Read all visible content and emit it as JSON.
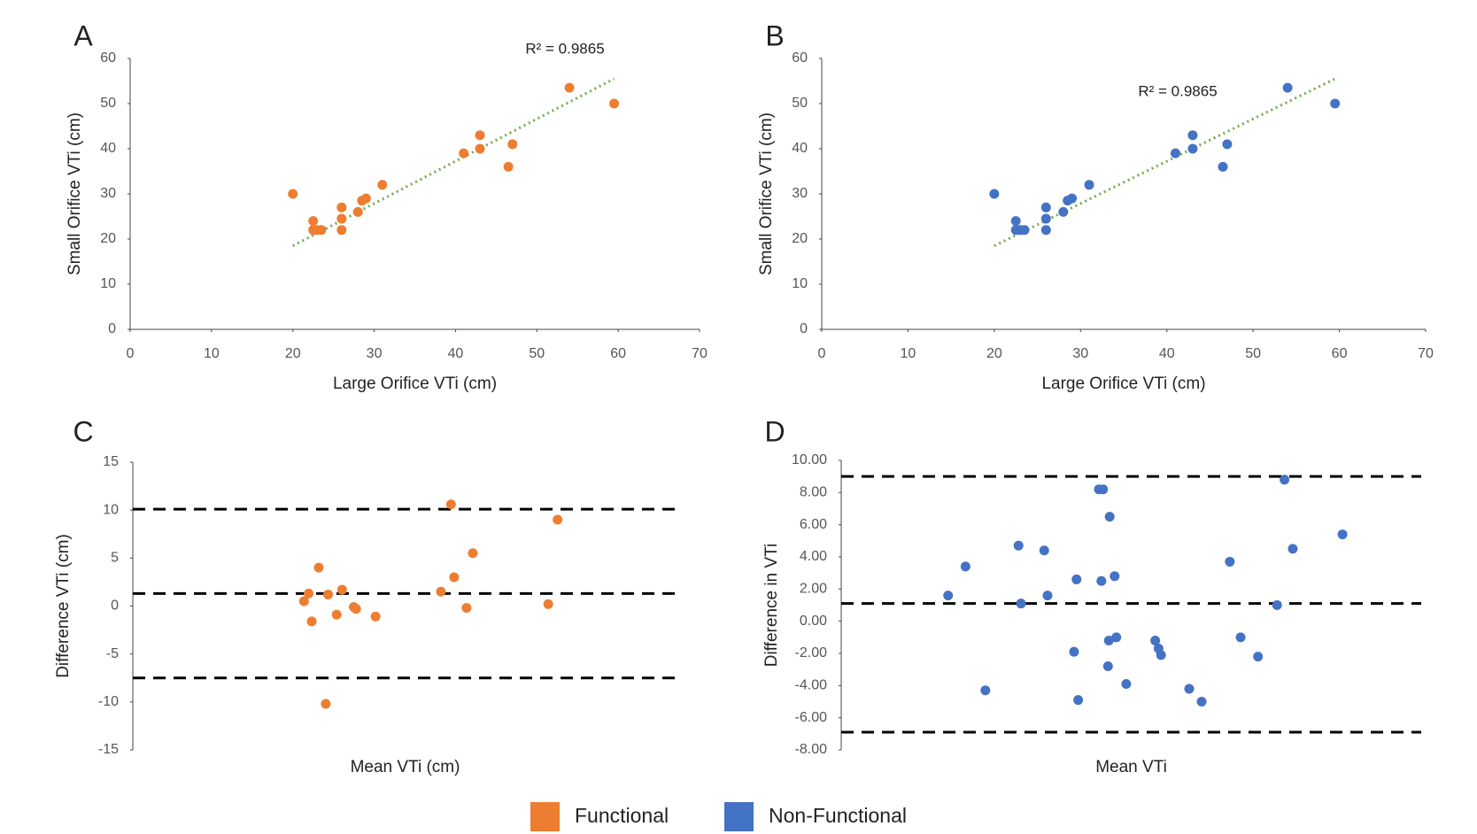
{
  "chart_data": [
    {
      "type": "scatter",
      "panel": "A",
      "xlabel": "Large Orifice VTi (cm)",
      "ylabel": "Small Orifice VTi (cm)",
      "annotation": "R² = 0.9865",
      "x": [
        20,
        22.5,
        22.5,
        23,
        23.5,
        26,
        26,
        26,
        28,
        28.5,
        29,
        31,
        41,
        43,
        43,
        46.5,
        47,
        54,
        59.5
      ],
      "series": [
        {
          "color": "#ed7d31",
          "values": [
            30,
            24,
            22,
            22,
            22,
            27,
            24.5,
            22,
            26,
            28.5,
            29,
            32,
            39,
            43,
            40,
            36,
            41,
            53.5,
            50
          ]
        }
      ],
      "trendline": {
        "x": [
          20,
          59.5
        ],
        "y": [
          18.5,
          55.5
        ],
        "color": "#70ad47"
      },
      "xlim": [
        0,
        70
      ],
      "xticks": [
        0,
        10,
        20,
        30,
        40,
        50,
        60,
        70
      ],
      "ylim": [
        0,
        60
      ],
      "yticks": [
        0,
        10,
        20,
        30,
        40,
        50,
        60
      ]
    },
    {
      "type": "scatter",
      "panel": "B",
      "xlabel": "Large Orifice VTi (cm)",
      "ylabel": "Small Orifice VTi (cm)",
      "annotation": "R² = 0.9865",
      "x": [
        20,
        22.5,
        22.5,
        23,
        23.5,
        26,
        26,
        26,
        28,
        28.5,
        29,
        31,
        41,
        43,
        43,
        46.5,
        47,
        54,
        59.5
      ],
      "series": [
        {
          "color": "#4472c4",
          "values": [
            30,
            24,
            22,
            22,
            22,
            27,
            24.5,
            22,
            26,
            28.5,
            29,
            32,
            39,
            43,
            40,
            36,
            41,
            53.5,
            50
          ]
        }
      ],
      "trendline": {
        "x": [
          20,
          59.5
        ],
        "y": [
          18.5,
          55.5
        ],
        "color": "#70ad47"
      },
      "xlim": [
        0,
        70
      ],
      "xticks": [
        0,
        10,
        20,
        30,
        40,
        50,
        60,
        70
      ],
      "ylim": [
        0,
        60
      ],
      "yticks": [
        0,
        10,
        20,
        30,
        40,
        50,
        60
      ]
    },
    {
      "type": "scatter",
      "panel": "C",
      "xlabel": "Mean VTi (cm)",
      "ylabel": "Difference  VTi (cm)",
      "x": [
        22,
        22.6,
        23,
        23.9,
        24.8,
        25.1,
        26.2,
        26.9,
        28.4,
        28.7,
        31.2,
        39.6,
        40.9,
        41.3,
        42.9,
        43.7,
        53.4,
        54.6
      ],
      "series": [
        {
          "color": "#ed7d31",
          "values": [
            0.5,
            1.3,
            -1.6,
            4,
            -10.2,
            1.2,
            -0.9,
            1.7,
            -0.1,
            -0.3,
            -1.1,
            1.5,
            10.6,
            3,
            -0.2,
            5.5,
            0.2,
            9
          ]
        }
      ],
      "hlines": [
        10.1,
        1.3,
        -7.5
      ],
      "xlim": [
        0,
        70
      ],
      "ylim": [
        -15,
        15
      ],
      "yticks": [
        -15,
        -10,
        -5,
        0,
        5,
        10,
        15
      ]
    },
    {
      "type": "scatter",
      "panel": "D",
      "xlabel": "Mean VTi",
      "ylabel": "Difference in VTi",
      "x": [
        12.9,
        15.0,
        17.4,
        21.4,
        21.7,
        24.5,
        24.9,
        28.1,
        28.4,
        28.6,
        31.1,
        31.6,
        31.4,
        32.2,
        32.3,
        32.4,
        33.0,
        33.2,
        34.4,
        37.9,
        38.3,
        38.6,
        42.0,
        43.5,
        46.9,
        48.2,
        50.3,
        52.6,
        53.5,
        54.5,
        60.5
      ],
      "series": [
        {
          "color": "#4472c4",
          "values": [
            1.6,
            3.4,
            -4.3,
            4.7,
            1.1,
            4.4,
            1.6,
            -1.9,
            2.6,
            -4.9,
            8.2,
            8.2,
            2.5,
            -2.8,
            -1.2,
            6.5,
            2.8,
            -1.0,
            -3.9,
            -1.2,
            -1.7,
            -2.1,
            -4.2,
            -5.0,
            3.7,
            -1.0,
            -2.2,
            1.0,
            8.8,
            4.5,
            5.4
          ]
        }
      ],
      "hlines": [
        9.0,
        1.1,
        -6.9
      ],
      "xlim": [
        0,
        70
      ],
      "ylim": [
        -8,
        10
      ],
      "yticks": [
        {
          "value": -8,
          "label": "-8.00"
        },
        {
          "value": -6,
          "label": "-6.00"
        },
        {
          "value": -4,
          "label": "-4.00"
        },
        {
          "value": -2,
          "label": "-2.00"
        },
        {
          "value": 0,
          "label": "0.00"
        },
        {
          "value": 2,
          "label": "2.00"
        },
        {
          "value": 4,
          "label": "4.00"
        },
        {
          "value": 6,
          "label": "6.00"
        },
        {
          "value": 8,
          "label": "8.00"
        },
        {
          "value": 10,
          "label": "10.00"
        }
      ]
    }
  ],
  "legend": [
    {
      "name": "Functional",
      "color": "#ed7d31"
    },
    {
      "name": "Non-Functional",
      "color": "#4472c4"
    }
  ]
}
